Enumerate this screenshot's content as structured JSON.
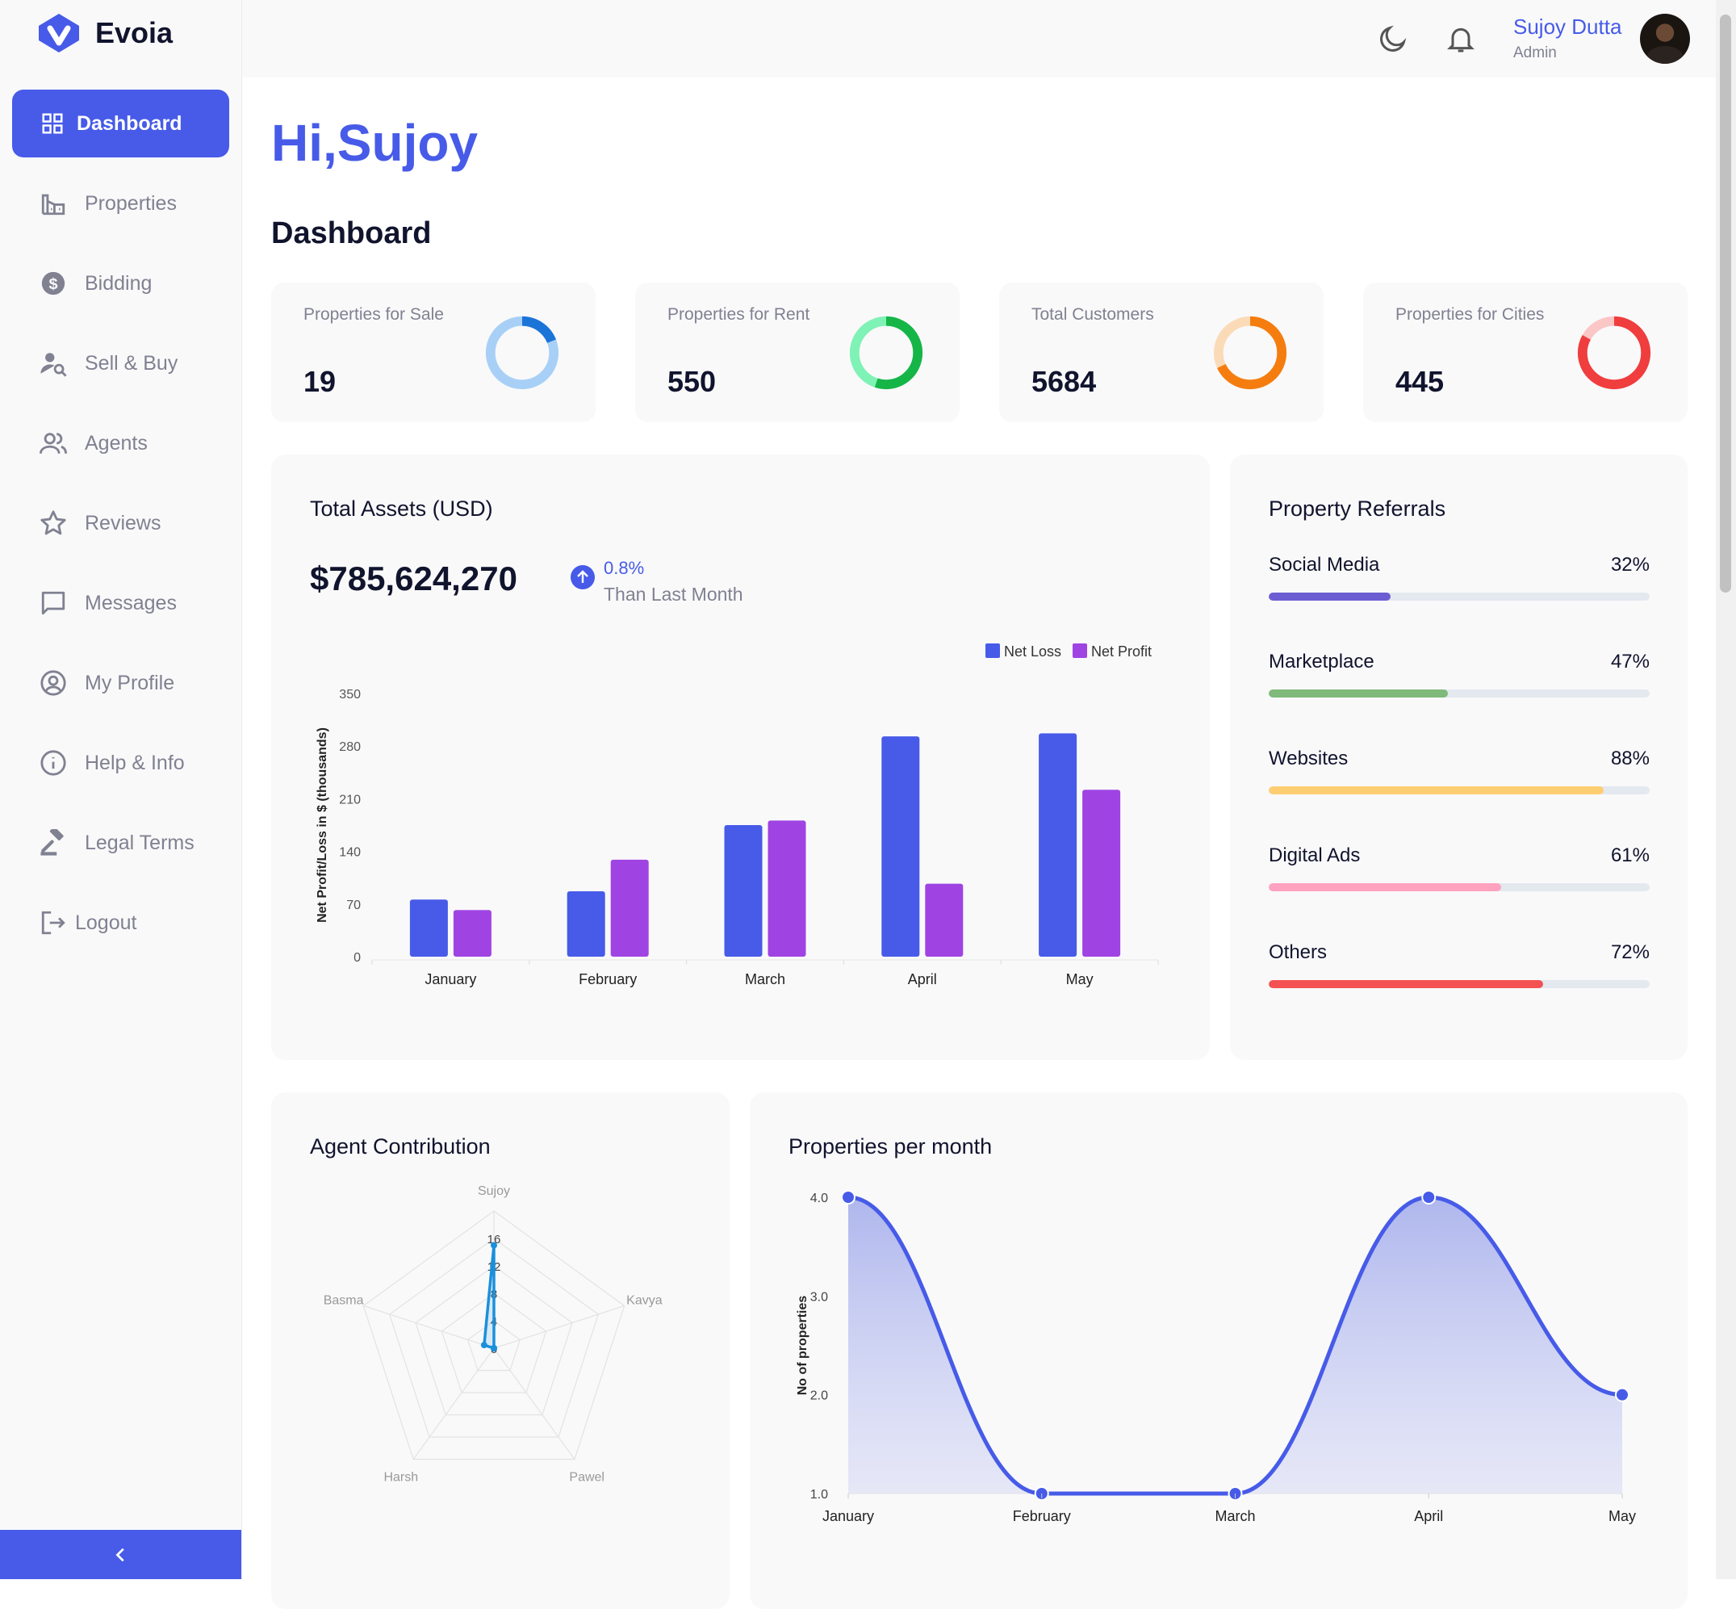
{
  "brand": {
    "name": "Evoia",
    "accent": "#475be8"
  },
  "sidebar": {
    "items": [
      {
        "label": "Dashboard",
        "icon": "dashboard-icon",
        "active": true
      },
      {
        "label": "Properties",
        "icon": "building-icon"
      },
      {
        "label": "Bidding",
        "icon": "dollar-icon"
      },
      {
        "label": "Sell & Buy",
        "icon": "user-search-icon"
      },
      {
        "label": "Agents",
        "icon": "people-icon"
      },
      {
        "label": "Reviews",
        "icon": "star-icon"
      },
      {
        "label": "Messages",
        "icon": "chat-icon"
      },
      {
        "label": "My Profile",
        "icon": "profile-icon"
      },
      {
        "label": "Help & Info",
        "icon": "info-icon"
      },
      {
        "label": "Legal Terms",
        "icon": "gavel-icon"
      },
      {
        "label": "Logout",
        "icon": "logout-icon"
      }
    ],
    "collapse_icon": "chevron-left-icon"
  },
  "topbar": {
    "user_name": "Sujoy Dutta",
    "user_role": "Admin",
    "icons": [
      "moon-icon",
      "bell-icon"
    ]
  },
  "main": {
    "greeting": "Hi,Sujoy",
    "title": "Dashboard"
  },
  "stats": [
    {
      "label": "Properties for Sale",
      "value": "19",
      "fraction": 0.19,
      "color": "#1b74d8",
      "track": "#a8d0f7"
    },
    {
      "label": "Properties for Rent",
      "value": "550",
      "fraction": 0.55,
      "color": "#16b547",
      "track": "#7ff2b5"
    },
    {
      "label": "Total Customers",
      "value": "5684",
      "fraction": 0.68,
      "color": "#f57d0f",
      "track": "#fbdbb7"
    },
    {
      "label": "Properties for Cities",
      "value": "445",
      "fraction": 0.83,
      "color": "#f03d3d",
      "track": "#fbc6c6"
    }
  ],
  "assets": {
    "title": "Total Assets (USD)",
    "value": "$785,624,270",
    "change": "0.8%",
    "change_note": "Than Last Month"
  },
  "referrals": {
    "title": "Property Referrals",
    "items": [
      {
        "label": "Social Media",
        "pct": "32%",
        "fraction": 0.32,
        "color": "#6c5dd3"
      },
      {
        "label": "Marketplace",
        "pct": "47%",
        "fraction": 0.47,
        "color": "#7fba7a"
      },
      {
        "label": "Websites",
        "pct": "88%",
        "fraction": 0.88,
        "color": "#ffce73"
      },
      {
        "label": "Digital Ads",
        "pct": "61%",
        "fraction": 0.61,
        "color": "#ffa2c0"
      },
      {
        "label": "Others",
        "pct": "72%",
        "fraction": 0.72,
        "color": "#f45252"
      }
    ]
  },
  "agent_panel": {
    "title": "Agent Contribution"
  },
  "ppm_panel": {
    "title": "Properties per month"
  },
  "chart_data": [
    {
      "type": "bar",
      "title": "",
      "ylabel": "Net Profit/Loss in $ (thousands)",
      "xlabel": "",
      "categories": [
        "January",
        "February",
        "March",
        "April",
        "May"
      ],
      "series": [
        {
          "name": "Net Loss",
          "values": [
            76,
            87,
            175,
            293,
            297
          ],
          "color": "#475be8"
        },
        {
          "name": "Net Profit",
          "values": [
            62,
            129,
            181,
            97,
            222
          ],
          "color": "#9f44e3"
        }
      ],
      "ylim": [
        0,
        350
      ],
      "yticks": [
        "0",
        "70",
        "140",
        "210",
        "280",
        "350"
      ],
      "legend": "top-right"
    },
    {
      "type": "radar",
      "title": "",
      "axes": [
        "Sujoy",
        "Kavya",
        "Pawel",
        "Harsh",
        "Basma"
      ],
      "rticks": [
        "0",
        "4",
        "8",
        "12",
        "16"
      ],
      "rlim": [
        0,
        20
      ],
      "series": [
        {
          "name": "Contribution",
          "values": [
            15,
            0,
            0,
            0,
            1.5
          ],
          "color": "#1a90dc"
        }
      ]
    },
    {
      "type": "area",
      "title": "",
      "ylabel": "No of properties",
      "xlabel": "",
      "categories": [
        "January",
        "February",
        "March",
        "April",
        "May"
      ],
      "series": [
        {
          "name": "Properties",
          "values": [
            4,
            1,
            1,
            4,
            2
          ],
          "color": "#475be8"
        }
      ],
      "ylim": [
        1,
        4
      ],
      "yticks": [
        "1.0",
        "2.0",
        "3.0",
        "4.0"
      ]
    }
  ]
}
